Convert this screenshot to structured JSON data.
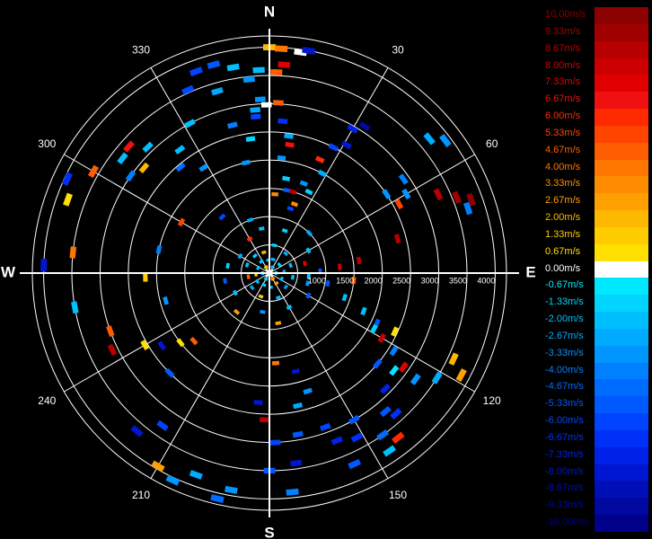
{
  "chart_data": {
    "type": "polar-scatter",
    "title": "",
    "compass": {
      "north": "N",
      "east": "E",
      "south": "S",
      "west": "W"
    },
    "angle_labels": [
      "30",
      "60",
      "120",
      "150",
      "210",
      "240",
      "300",
      "330"
    ],
    "angle_values": [
      30,
      60,
      120,
      150,
      210,
      240,
      300,
      330
    ],
    "radial_ticks": [
      500,
      1000,
      1500,
      2000,
      2500,
      3000,
      3500,
      4000
    ],
    "radial_tick_labels": [
      "1000",
      "1500",
      "2000",
      "2500",
      "3000",
      "3500",
      "4000"
    ],
    "radial_range": [
      0,
      4200
    ],
    "grid": true,
    "legend_position": "right",
    "colorbar": {
      "unit": "m/s",
      "labels": [
        "10.00m/s",
        "9.33m/s",
        "8.67m/s",
        "8.00m/s",
        "7.33m/s",
        "6.67m/s",
        "6.00m/s",
        "5.33m/s",
        "4.67m/s",
        "4.00m/s",
        "3.33m/s",
        "2.67m/s",
        "2.00m/s",
        "1.33m/s",
        "0.67m/s",
        "0.00m/s",
        "-0.67m/s",
        "-1.33m/s",
        "-2.00m/s",
        "-2.67m/s",
        "-3.33m/s",
        "-4.00m/s",
        "-4.67m/s",
        "-5.33m/s",
        "-6.00m/s",
        "-6.67m/s",
        "-7.33m/s",
        "-8.00m/s",
        "-8.67m/s",
        "-9.33m/s",
        "-10.00m/s"
      ],
      "colors": [
        "#8b0000",
        "#a00000",
        "#b80000",
        "#cc0000",
        "#e00000",
        "#f01010",
        "#ff2a00",
        "#ff4400",
        "#ff5e00",
        "#ff7700",
        "#ff8c00",
        "#ffa000",
        "#ffb800",
        "#ffcc00",
        "#ffe000",
        "#ffffff",
        "#00e8ff",
        "#00d4ff",
        "#00bfff",
        "#00aaff",
        "#0095ff",
        "#0080ff",
        "#006cff",
        "#0058ff",
        "#0044ff",
        "#0030f8",
        "#0022e8",
        "#0016d0",
        "#000eb8",
        "#0008a0",
        "#000088"
      ],
      "label_colors": [
        "#8b0000",
        "#a00000",
        "#b80000",
        "#cc0000",
        "#e00000",
        "#f01010",
        "#ff2a00",
        "#ff4400",
        "#ff5e00",
        "#ff7700",
        "#ff8c00",
        "#ffa000",
        "#ffb800",
        "#ffcc00",
        "#ffe000",
        "#ffffff",
        "#00e8ff",
        "#00d4ff",
        "#00bfff",
        "#00aaff",
        "#0095ff",
        "#0080ff",
        "#006cff",
        "#0058ff",
        "#0044ff",
        "#0030f8",
        "#0022e8",
        "#0016d0",
        "#000eb8",
        "#0008a0",
        "#000088"
      ]
    },
    "points": [
      [
        0,
        4000,
        2.2
      ],
      [
        3,
        3980,
        4.0
      ],
      [
        2,
        3560,
        4.5
      ],
      [
        4,
        3700,
        7.3
      ],
      [
        8,
        3950,
        -0.3
      ],
      [
        10,
        4000,
        -8.0
      ],
      [
        -15,
        3820,
        -5.0
      ],
      [
        -10,
        3700,
        -2.0
      ],
      [
        -6,
        3450,
        -3.5
      ],
      [
        -3,
        3080,
        -3.3
      ],
      [
        -14,
        2700,
        -4.0
      ],
      [
        -5,
        2780,
        -6.0
      ],
      [
        -1,
        2980,
        0.0
      ],
      [
        3,
        3020,
        4.5
      ],
      [
        5,
        2700,
        -6.5
      ],
      [
        8,
        2450,
        -2.7
      ],
      [
        9,
        2300,
        7.0
      ],
      [
        6,
        2050,
        -3.0
      ],
      [
        10,
        1700,
        -1.0
      ],
      [
        12,
        1500,
        -5.0
      ],
      [
        4,
        1400,
        3.5
      ],
      [
        16,
        1500,
        9.0
      ],
      [
        18,
        1200,
        -6.0
      ],
      [
        20,
        1300,
        3.5
      ],
      [
        21,
        1700,
        -3.0
      ],
      [
        26,
        1600,
        -1.5
      ],
      [
        24,
        2200,
        6.3
      ],
      [
        28,
        2000,
        -2.6
      ],
      [
        27,
        2500,
        -6.0
      ],
      [
        31,
        2650,
        -8.0
      ],
      [
        30,
        2950,
        -7.0
      ],
      [
        33,
        3100,
        -9.0
      ],
      [
        50,
        3700,
        -2.4
      ],
      [
        53,
        3900,
        -3.0
      ],
      [
        55,
        2900,
        -4.0
      ],
      [
        56,
        2500,
        -3.3
      ],
      [
        60,
        2800,
        -3.0
      ],
      [
        62,
        2600,
        5.5
      ],
      [
        65,
        3300,
        9.0
      ],
      [
        68,
        3580,
        9.5
      ],
      [
        72,
        3700,
        -4.0
      ],
      [
        70,
        3800,
        9.8
      ],
      [
        75,
        2350,
        8.4
      ],
      [
        82,
        1600,
        8.8
      ],
      [
        85,
        1250,
        8.0
      ],
      [
        88,
        900,
        -5.0
      ],
      [
        95,
        1500,
        5.0
      ],
      [
        100,
        1050,
        -5.0
      ],
      [
        105,
        700,
        -3.5
      ],
      [
        108,
        1400,
        -2.0
      ],
      [
        112,
        1800,
        -2.2
      ],
      [
        115,
        2100,
        -5.0
      ],
      [
        118,
        2100,
        -1.0
      ],
      [
        115,
        2450,
        1.0
      ],
      [
        120,
        2300,
        8.0
      ],
      [
        122,
        2600,
        -4.0
      ],
      [
        125,
        2900,
        7.4
      ],
      [
        128,
        2800,
        -0.5
      ],
      [
        115,
        3600,
        1.8
      ],
      [
        118,
        3850,
        2.4
      ],
      [
        122,
        3500,
        -2.7
      ],
      [
        126,
        3200,
        -3.0
      ],
      [
        130,
        2500,
        -5.3
      ],
      [
        135,
        2900,
        -7.0
      ],
      [
        138,
        3350,
        -6.5
      ],
      [
        140,
        3200,
        -5.5
      ],
      [
        145,
        3500,
        -4.5
      ],
      [
        142,
        3700,
        6.0
      ],
      [
        146,
        3800,
        -2.0
      ],
      [
        150,
        3000,
        -5.0
      ],
      [
        152,
        3300,
        -6.5
      ],
      [
        156,
        3700,
        -5.0
      ],
      [
        158,
        3200,
        -7.0
      ],
      [
        160,
        2900,
        -6.0
      ],
      [
        162,
        2200,
        -3.0
      ],
      [
        165,
        1800,
        -8.0
      ],
      [
        168,
        2400,
        -2.8
      ],
      [
        170,
        2900,
        -5.0
      ],
      [
        172,
        3400,
        -8.0
      ],
      [
        174,
        3900,
        -4.0
      ],
      [
        176,
        1600,
        4.0
      ],
      [
        178,
        3000,
        -6.0
      ],
      [
        180,
        3500,
        -5.0
      ],
      [
        182,
        2600,
        8.8
      ],
      [
        185,
        2300,
        -8.0
      ],
      [
        190,
        3900,
        -3.5
      ],
      [
        193,
        4100,
        -4.5
      ],
      [
        200,
        3800,
        -2.5
      ],
      [
        205,
        4050,
        -3.0
      ],
      [
        210,
        3950,
        2.6
      ],
      [
        215,
        3300,
        -6.0
      ],
      [
        220,
        3650,
        -8.0
      ],
      [
        225,
        2500,
        -5.0
      ],
      [
        228,
        1800,
        5.0
      ],
      [
        232,
        2000,
        1.0
      ],
      [
        236,
        2300,
        -8.0
      ],
      [
        240,
        2550,
        0.8
      ],
      [
        244,
        3100,
        8.8
      ],
      [
        250,
        3000,
        4.6
      ],
      [
        255,
        1900,
        -3.0
      ],
      [
        260,
        3500,
        -2.3
      ],
      [
        268,
        2200,
        1.2
      ],
      [
        272,
        4000,
        -8.0
      ],
      [
        276,
        3500,
        4.0
      ],
      [
        282,
        2000,
        -4.0
      ],
      [
        290,
        3800,
        1.0
      ],
      [
        295,
        3950,
        -6.5
      ],
      [
        300,
        3600,
        5.0
      ],
      [
        305,
        3000,
        -4.0
      ],
      [
        308,
        3300,
        -2.0
      ],
      [
        310,
        2900,
        2.2
      ],
      [
        312,
        3350,
        7.0
      ],
      [
        316,
        3100,
        -1.8
      ],
      [
        320,
        2450,
        -4.5
      ],
      [
        324,
        2700,
        -2.3
      ],
      [
        328,
        2200,
        -3.2
      ],
      [
        332,
        3000,
        -2.1
      ],
      [
        336,
        3550,
        -6.2
      ],
      [
        340,
        3800,
        -6.0
      ],
      [
        344,
        3350,
        -2.5
      ],
      [
        348,
        2000,
        -3.0
      ],
      [
        352,
        2400,
        -1.2
      ],
      [
        355,
        2900,
        -2.5
      ],
      [
        357,
        3600,
        -2.0
      ],
      [
        300,
        1800,
        5.5
      ],
      [
        320,
        1300,
        -6.0
      ],
      [
        340,
        1000,
        -2.4
      ],
      [
        20,
        800,
        -1.5
      ],
      [
        45,
        1000,
        -2.6
      ],
      [
        60,
        800,
        -2.0
      ],
      [
        75,
        650,
        7.5
      ],
      [
        95,
        700,
        -1.0
      ],
      [
        120,
        800,
        -5.0
      ],
      [
        150,
        700,
        -2.0
      ],
      [
        170,
        900,
        2.5
      ],
      [
        190,
        700,
        -3.3
      ],
      [
        220,
        900,
        3.0
      ],
      [
        240,
        700,
        -2.3
      ],
      [
        260,
        800,
        -5.0
      ],
      [
        280,
        750,
        -1.5
      ],
      [
        300,
        600,
        -2.5
      ],
      [
        330,
        700,
        6.0
      ],
      [
        350,
        800,
        -2.2
      ],
      [
        10,
        500,
        -1.0
      ],
      [
        40,
        450,
        -2.5
      ],
      [
        70,
        400,
        -1.8
      ],
      [
        100,
        420,
        -2.0
      ],
      [
        130,
        380,
        -3.5
      ],
      [
        160,
        460,
        -2.1
      ],
      [
        200,
        440,
        1.2
      ],
      [
        230,
        400,
        -2.5
      ],
      [
        260,
        380,
        5.0
      ],
      [
        290,
        420,
        -2.3
      ],
      [
        320,
        400,
        -1.0
      ],
      [
        345,
        380,
        2.0
      ],
      [
        15,
        250,
        -2.0
      ],
      [
        50,
        230,
        -1.5
      ],
      [
        85,
        260,
        -2.5
      ],
      [
        115,
        240,
        -1.8
      ],
      [
        145,
        220,
        3.0
      ],
      [
        175,
        250,
        -2.3
      ],
      [
        205,
        230,
        -1.0
      ],
      [
        235,
        260,
        -1.9
      ],
      [
        265,
        240,
        0.8
      ],
      [
        295,
        220,
        -2.2
      ],
      [
        325,
        250,
        -1.5
      ],
      [
        355,
        230,
        -2.0
      ],
      [
        30,
        120,
        -1.7
      ],
      [
        90,
        120,
        -2.2
      ],
      [
        150,
        120,
        2.5
      ],
      [
        210,
        120,
        -1.5
      ],
      [
        270,
        120,
        -2.1
      ],
      [
        330,
        120,
        1.5
      ]
    ]
  }
}
